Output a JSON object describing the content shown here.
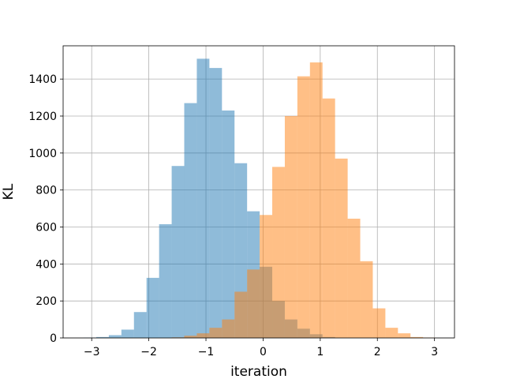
{
  "chart_data": {
    "type": "bar",
    "title": "",
    "xlabel": "iteration",
    "ylabel": "KL",
    "xlim": [
      -3.5,
      3.35
    ],
    "ylim": [
      0,
      1580
    ],
    "xticks": [
      -3,
      -2,
      -1,
      0,
      1,
      2,
      3
    ],
    "yticks": [
      0,
      200,
      400,
      600,
      800,
      1000,
      1200,
      1400
    ],
    "grid": true,
    "legend": "none",
    "series": [
      {
        "color": "#1f77b4",
        "opacity": 0.5,
        "bin_edges": [
          -3.14,
          -2.92,
          -2.7,
          -2.48,
          -2.26,
          -2.04,
          -1.82,
          -1.6,
          -1.38,
          -1.16,
          -0.94,
          -0.72,
          -0.5,
          -0.28,
          -0.06,
          0.16,
          0.38,
          0.6,
          0.82,
          1.04,
          1.26
        ],
        "counts": [
          2,
          5,
          15,
          45,
          140,
          325,
          615,
          930,
          1270,
          1510,
          1460,
          1230,
          945,
          685,
          385,
          200,
          100,
          50,
          20,
          5
        ]
      },
      {
        "color": "#ff7f0e",
        "opacity": 0.5,
        "bin_edges": [
          -1.6,
          -1.38,
          -1.16,
          -0.94,
          -0.72,
          -0.5,
          -0.28,
          -0.06,
          0.16,
          0.38,
          0.6,
          0.82,
          1.04,
          1.26,
          1.48,
          1.7,
          1.92,
          2.14,
          2.36,
          2.58,
          2.8,
          3.02
        ],
        "counts": [
          3,
          12,
          25,
          55,
          100,
          250,
          370,
          665,
          925,
          1200,
          1415,
          1490,
          1295,
          970,
          645,
          415,
          160,
          55,
          25,
          5,
          2
        ]
      }
    ]
  }
}
